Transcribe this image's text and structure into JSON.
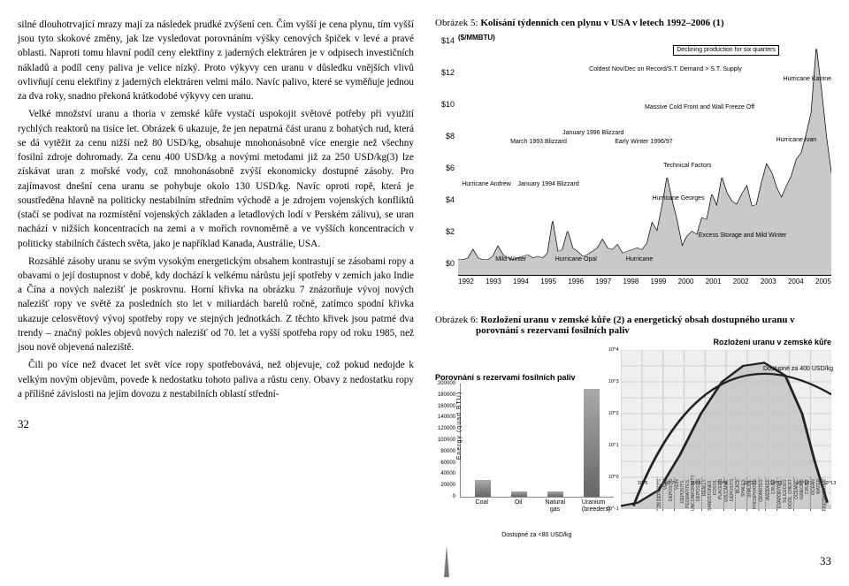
{
  "left": {
    "paragraphs": [
      "silné dlouhotrvající mrazy mají za následek prudké zvýšení cen. Čím vyšší je cena plynu, tím vyšší jsou tyto skokové změny, jak lze vysledovat porovnáním výšky cenových špiček v levé a pravé oblasti. Naproti tomu hlavní podíl ceny elektřiny z jaderných elektráren je v odpisech investičních nákladů a podíl ceny paliva je velice nízký. Proto výkyvy cen uranu v důsledku vnějších vlivů ovlivňují cenu elektřiny z jaderných elektráren velmi málo. Navíc palivo, které se vyměňuje jednou za dva roky, snadno překoná krátkodobé výkyvy cen uranu.",
      "Velké množství uranu a thoria v zemské kůře vystačí uspokojit světové potřeby při využití rychlých reaktorů na tisíce let. Obrázek 6 ukazuje, že jen nepatrná část uranu z bohatých rud, která se dá vytěžit za cenu nižší než 80 USD/kg, obsahuje mnohonásobně více energie než všechny fosilní zdroje dohromady. Za cenu 400 USD/kg a novými metodami již za 250 USD/kg(3) lze získávat uran z mořské vody, což mnohonásobně zvýší ekonomicky dostupné zásoby. Pro zajímavost dnešní cena uranu se pohybuje okolo 130 USD/kg. Navíc oproti ropě, která je soustředěna hlavně na politicky nestabilním středním východě a je zdrojem vojenských konfliktů (stačí se podívat na rozmístění vojenských základen a letadlových lodí v Perském zálivu), se uran nachází v nižších koncentracích na zemi a v mořích rovnoměrně a ve vyšších koncentracích v politicky stabilních částech světa, jako je například Kanada, Austrálie, USA.",
      "Rozsáhlé zásoby uranu se svým vysokým energetickým obsahem kontrastují se zásobami ropy a obavami o její dostupnost v době, kdy dochází k velkému nárůstu její spotřeby v zemích jako Indie a Čína a nových nalezišť je poskrovnu. Horní křivka na obrázku 7 znázorňuje vývoj nových nalezišť ropy ve světě za posledních sto let v miliardách barelů ročně, zatímco spodní křivka ukazuje celosvětový vývoj spotřeby ropy ve stejných jednotkách. Z těchto křivek jsou patrné dva trendy – značný pokles objevů nových nalezišť od 70. let a vyšší spotřeba ropy od roku 1985, než jsou nově objevená naleziště.",
      "Čili po více než dvacet let svět více ropy spotřebovává, než objevuje, což pokud nedojde k velkým novým objevům, povede k nedostatku tohoto paliva a růstu ceny. Obavy z nedostatku ropy a přílišné závislosti na jejím dovozu z nestabilních oblastí střední-"
    ],
    "pagenum": "32"
  },
  "fig5": {
    "caption_label": "Obrázek 5:",
    "caption_text": "Kolísání týdenních cen plynu v USA v letech 1992–2006 (1)",
    "units": "($/MMBTU)",
    "y_ticks": [
      "$14",
      "$12",
      "$10",
      "$8",
      "$6",
      "$4",
      "$2",
      "$0"
    ],
    "x_ticks": [
      "1992",
      "1993",
      "1994",
      "1995",
      "1996",
      "1997",
      "1998",
      "1999",
      "2000",
      "2001",
      "2002",
      "2003",
      "2004",
      "2005"
    ],
    "labels": {
      "decl": "Declining production for six quarters",
      "cold_nov": "Coldest Nov/Dec on\nRecord/S.T. Demand >\nS.T. Supply",
      "massive": "Massive Cold Front and\nWall Freeze Off",
      "march93": "March 1993\nBlizzard",
      "jan96": "January\n1996\nBlizzard",
      "early97": "Early Winter\n1996/97",
      "andrew": "Hurricane\nAndrew",
      "jan94": "January 1994\nBlizzard",
      "tech": "Technical\nFactors",
      "georges": "Hurricane\nGeorges",
      "katrine": "Hurricane\nKatrine",
      "ivan": "Hurricane\nIvan",
      "excess": "Excess Storage\nand Mild Winter",
      "mild": "Mild Winter",
      "opal": "Hurricane Opal",
      "hurr": "Hurricane"
    },
    "series_points": [
      0.9,
      0.9,
      1.0,
      1.5,
      1.0,
      0.9,
      0.9,
      1.1,
      1.7,
      1.2,
      1.0,
      0.9,
      1.0,
      1.1,
      1.2,
      1.0,
      1.1,
      1.0,
      1.3,
      3.2,
      1.4,
      1.5,
      2.6,
      1.6,
      1.4,
      1.1,
      1.2,
      1.4,
      1.6,
      2.1,
      1.6,
      1.5,
      1.8,
      1.3,
      1.4,
      1.5,
      1.6,
      1.5,
      1.9,
      3.1,
      2.6,
      4.1,
      5.8,
      4.4,
      3.2,
      1.7,
      2.3,
      2.6,
      2.4,
      3.4,
      3.3,
      4.8,
      4.1,
      5.8,
      4.9,
      4.4,
      4.2,
      4.8,
      5.3,
      4.1,
      4.2,
      5.5,
      6.6,
      6.1,
      5.2,
      4.6,
      5.3,
      5.9,
      6.9,
      7.3,
      8.4,
      9.7,
      13.5,
      11.0,
      8.2,
      6.0
    ]
  },
  "fig6": {
    "caption_label": "Obrázek 6:",
    "caption_text": "Rozložení uranu v zemské kůře (2) a energetický obsah dostupného uranu v porovnání s rezervami fosilních paliv",
    "hill_title": "Rozložení uranu v zemské kůře",
    "bars": {
      "title": "Porovnání s rezervami fosilních paliv",
      "ylabel": "Energy (quad BTU)",
      "y_ticks": [
        "200000",
        "180000",
        "160000",
        "140000",
        "120000",
        "100000",
        "80000",
        "60000",
        "40000",
        "20000",
        "0"
      ],
      "categories": [
        "Coal",
        "Oil",
        "Natural gas",
        "Uranium\n(breeders)"
      ],
      "values": [
        30000,
        10000,
        9500,
        190000
      ],
      "ymax": 200000,
      "footnote": "Dostupné za <80 USD/kg"
    },
    "hill": {
      "tag_right": "Dostupné za 400 USD/kg",
      "y_exp_labels": [
        "10^4",
        "10^3",
        "10^2",
        "10^1",
        "10^0",
        "10^-1"
      ],
      "x_exp_labels": [
        "10^6",
        "10^7",
        "10^8",
        "10^9",
        "10^10",
        "10^11",
        "10^12",
        "10^13"
      ],
      "strata": [
        "ZN DEPOSITS",
        "VEIN DEPOSITS",
        "VEIN DEPOSITS, PEGMATITES, UNCONFORMITY DEPOSITS",
        "REALLY SANDSTONES, FOSSIL PLACERS",
        "VOLCANIC DEPOSITS",
        "BLACK SHALES",
        "SHALES, PHOSPHATES",
        "GRANITES",
        "AVERAGE CRUST",
        "EVAPORITES, SILICEOUS OOZE, CHERT",
        "OCEANIC IGNEOUS CRUST",
        "OCEAN WATER",
        "FRESH WATER"
      ]
    }
  },
  "right_pagenum": "33"
}
